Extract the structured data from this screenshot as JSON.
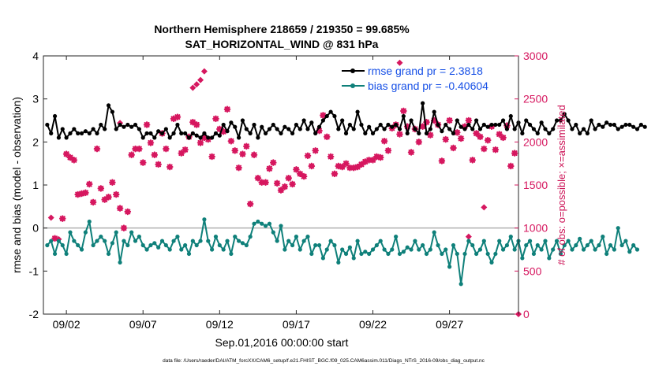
{
  "chart_data": {
    "type": "line",
    "title_line1": "Northern Hemisphere 218659 / 219350 = 99.685%",
    "title_line2": "SAT_HORIZONTAL_WIND @ 831 hPa",
    "xlabel": "Sep.01,2016 00:00:00 start",
    "ylabel": "rmse and bias (model - observation)",
    "y2label": "# of obs: o=possible; ×=assimilated",
    "footer": "data file: /Users/raeder/DAI/ATM_forcXX/CAM6_setup/f.e21.FHIST_BGC.f09_025.CAM6assim.011/Diags_NTrS_2016-09/obs_diag_output.nc",
    "xlim": [
      0.5,
      31.5
    ],
    "ylim": [
      -2,
      4
    ],
    "y2lim": [
      0,
      3000
    ],
    "xticks": [
      2,
      7,
      12,
      17,
      22,
      27
    ],
    "xticklabels": [
      "09/02",
      "09/07",
      "09/12",
      "09/17",
      "09/22",
      "09/27"
    ],
    "yticks": [
      -2,
      -1,
      0,
      1,
      2,
      3,
      4
    ],
    "yticklabels": [
      "-2",
      "-1",
      "0",
      "1",
      "2",
      "3",
      "4"
    ],
    "y2ticks": [
      0,
      500,
      1000,
      1500,
      2000,
      2500,
      3000
    ],
    "y2ticklabels": [
      "0",
      "500",
      "1000",
      "1500",
      "2000",
      "2500",
      "3000"
    ],
    "colors": {
      "rmse": "#000000",
      "bias": "#0f807a",
      "obs": "#d6175f",
      "zero_line": "#b0b0b0",
      "legend_text": "#1750e6"
    },
    "legend": {
      "position": "top-right",
      "entries": [
        "rmse grand pr = 2.3818",
        "bias grand pr = -0.40604"
      ]
    },
    "x_step": 0.25,
    "x_start": 0.75,
    "series": [
      {
        "name": "rmse grand pr = 2.3818",
        "marker": "circle",
        "values": [
          2.4,
          2.2,
          2.6,
          2.1,
          2.3,
          2.1,
          2.2,
          2.3,
          2.2,
          2.2,
          2.25,
          2.2,
          2.3,
          2.2,
          2.4,
          2.3,
          2.85,
          2.7,
          2.3,
          2.4,
          2.35,
          2.4,
          2.35,
          2.4,
          2.3,
          2.1,
          2.2,
          2.2,
          2.1,
          2.25,
          2.2,
          2.3,
          2.1,
          2.2,
          2.4,
          2.2,
          2.2,
          2.1,
          2.2,
          2.15,
          2.1,
          2.2,
          2.1,
          2.1,
          2.2,
          2.15,
          2.4,
          2.25,
          2.45,
          2.35,
          2.1,
          2.5,
          2.3,
          2.2,
          2.4,
          2.1,
          2.35,
          2.2,
          2.3,
          2.4,
          2.3,
          2.2,
          2.35,
          2.3,
          2.2,
          2.4,
          2.3,
          2.5,
          2.3,
          2.45,
          2.2,
          2.35,
          2.5,
          2.6,
          2.7,
          2.6,
          2.3,
          2.5,
          2.2,
          2.4,
          2.3,
          2.7,
          2.4,
          2.2,
          2.35,
          2.2,
          2.3,
          2.4,
          2.3,
          2.4,
          2.35,
          2.4,
          2.3,
          2.6,
          2.2,
          2.5,
          2.3,
          2.2,
          2.9,
          2.2,
          2.3,
          2.7,
          2.4,
          2.25,
          2.4,
          2.3,
          2.2,
          2.5,
          2.35,
          2.3,
          2.4,
          2.3,
          2.5,
          2.3,
          2.4,
          2.35,
          2.4,
          2.4,
          2.4,
          2.5,
          2.3,
          2.6,
          2.3,
          2.45,
          2.2,
          2.5,
          2.4,
          2.3,
          2.2,
          2.45,
          2.3,
          2.2,
          2.3,
          2.5,
          2.5,
          2.65,
          2.5,
          2.3,
          2.4,
          2.2,
          2.3,
          2.2,
          2.5,
          2.3,
          2.4,
          2.35,
          2.45,
          2.4,
          2.4,
          2.3,
          2.35,
          2.4,
          2.4,
          2.35,
          2.3,
          2.4,
          2.35
        ]
      },
      {
        "name": "bias grand pr = -0.40604",
        "marker": "circle",
        "values": [
          -0.4,
          -0.3,
          -0.6,
          -0.3,
          -0.4,
          -0.6,
          -0.1,
          -0.3,
          -0.4,
          -0.5,
          -0.1,
          0.15,
          -0.4,
          -0.3,
          -0.2,
          -0.3,
          -0.6,
          -0.35,
          -0.1,
          -0.8,
          -0.3,
          -0.4,
          -0.1,
          -0.3,
          -0.2,
          -0.4,
          -0.5,
          -0.4,
          -0.35,
          -0.45,
          -0.3,
          -0.4,
          -0.5,
          -0.3,
          -0.2,
          -0.5,
          -0.4,
          -0.6,
          -0.3,
          -0.4,
          -0.3,
          0.2,
          -0.3,
          -0.5,
          -0.2,
          -0.4,
          -0.5,
          -0.3,
          -0.6,
          -0.2,
          -0.3,
          -0.35,
          -0.4,
          -0.2,
          0.1,
          0.15,
          0.1,
          0.05,
          0.1,
          -0.1,
          -0.3,
          0.05,
          -0.5,
          -0.3,
          -0.4,
          -0.2,
          -0.5,
          -0.3,
          -0.2,
          -0.6,
          -0.4,
          -0.4,
          -0.7,
          -0.5,
          -0.3,
          -0.4,
          -0.8,
          -0.5,
          -0.6,
          -0.45,
          -0.7,
          -0.3,
          -0.6,
          -0.55,
          -0.6,
          -0.5,
          -0.4,
          -0.3,
          -0.5,
          -0.6,
          -0.5,
          -0.2,
          -0.6,
          -0.55,
          -0.45,
          -0.5,
          -0.3,
          -0.5,
          -0.4,
          -0.6,
          -0.5,
          -0.1,
          -0.4,
          -0.6,
          -0.5,
          -0.9,
          -0.4,
          -0.6,
          -1.3,
          -0.6,
          -0.3,
          -0.4,
          -0.6,
          -0.5,
          -0.3,
          -0.6,
          -0.8,
          -0.6,
          -0.3,
          -0.5,
          -0.4,
          -0.2,
          -0.5,
          -0.3,
          -0.7,
          -0.4,
          -0.3,
          -0.6,
          -0.4,
          -0.5,
          -0.3,
          -0.7,
          -0.5,
          -0.3,
          -0.6,
          -0.4,
          -0.3,
          -0.5,
          -0.4,
          -0.25,
          -0.5,
          -0.4,
          -0.3,
          -0.5,
          -0.4,
          -0.2,
          -0.6,
          -0.4,
          -0.5,
          0.0,
          -0.4,
          -0.3,
          -0.55,
          -0.4,
          -0.5
        ]
      }
    ],
    "obs_assimilated": [
      [
        1.25,
        880
      ],
      [
        1.75,
        1110
      ],
      [
        2.0,
        1860
      ],
      [
        2.25,
        1820
      ],
      [
        2.5,
        1790
      ],
      [
        2.75,
        1390
      ],
      [
        3.0,
        1400
      ],
      [
        3.25,
        1410
      ],
      [
        3.5,
        1510
      ],
      [
        3.75,
        1300
      ],
      [
        4.0,
        1920
      ],
      [
        4.25,
        1460
      ],
      [
        4.5,
        1330
      ],
      [
        4.75,
        1360
      ],
      [
        5.0,
        1530
      ],
      [
        5.25,
        1390
      ],
      [
        5.5,
        1230
      ],
      [
        5.75,
        1000
      ],
      [
        6.0,
        1190
      ],
      [
        6.25,
        1850
      ],
      [
        6.5,
        1920
      ],
      [
        6.75,
        1920
      ],
      [
        7.0,
        1760
      ],
      [
        7.25,
        2200
      ],
      [
        7.5,
        1990
      ],
      [
        7.75,
        1850
      ],
      [
        8.0,
        1740
      ],
      [
        8.25,
        2100
      ],
      [
        8.5,
        1920
      ],
      [
        8.75,
        1710
      ],
      [
        9.0,
        2270
      ],
      [
        9.25,
        2290
      ],
      [
        9.5,
        1870
      ],
      [
        9.75,
        1910
      ],
      [
        10.0,
        2060
      ],
      [
        10.25,
        2230
      ],
      [
        10.5,
        2200
      ],
      [
        10.75,
        1990
      ],
      [
        11.0,
        2050
      ],
      [
        11.25,
        2030
      ],
      [
        11.5,
        1830
      ],
      [
        11.75,
        2270
      ],
      [
        12.0,
        2150
      ],
      [
        12.25,
        2120
      ],
      [
        12.5,
        2380
      ],
      [
        12.75,
        2010
      ],
      [
        13.0,
        1900
      ],
      [
        13.25,
        1700
      ],
      [
        13.5,
        1860
      ],
      [
        13.75,
        1950
      ],
      [
        14.0,
        1280
      ],
      [
        14.25,
        1850
      ],
      [
        14.5,
        1580
      ],
      [
        14.75,
        1530
      ],
      [
        15.0,
        1530
      ],
      [
        15.25,
        1690
      ],
      [
        15.5,
        1760
      ],
      [
        15.75,
        1520
      ],
      [
        16.0,
        1440
      ],
      [
        16.25,
        1480
      ],
      [
        16.5,
        1580
      ],
      [
        16.75,
        1510
      ],
      [
        17.0,
        1680
      ],
      [
        17.25,
        1630
      ],
      [
        17.5,
        1600
      ],
      [
        17.75,
        1840
      ],
      [
        18.0,
        1720
      ],
      [
        18.25,
        1900
      ],
      [
        18.5,
        2130
      ],
      [
        18.75,
        2310
      ],
      [
        19.0,
        2060
      ],
      [
        19.25,
        1830
      ],
      [
        19.5,
        1630
      ],
      [
        19.75,
        1720
      ],
      [
        20.0,
        1710
      ],
      [
        20.25,
        1750
      ],
      [
        20.5,
        1700
      ],
      [
        20.75,
        1700
      ],
      [
        21.0,
        1710
      ],
      [
        21.25,
        1740
      ],
      [
        21.5,
        1770
      ],
      [
        21.75,
        1790
      ],
      [
        22.0,
        1790
      ],
      [
        22.25,
        1830
      ],
      [
        22.5,
        1820
      ],
      [
        22.75,
        2010
      ],
      [
        23.0,
        1900
      ],
      [
        23.25,
        2160
      ],
      [
        23.5,
        2200
      ],
      [
        23.75,
        2090
      ],
      [
        24.0,
        2360
      ],
      [
        24.25,
        2180
      ],
      [
        24.5,
        1880
      ],
      [
        24.75,
        2150
      ],
      [
        25.0,
        2000
      ],
      [
        25.25,
        2180
      ],
      [
        25.5,
        2230
      ],
      [
        25.75,
        2080
      ],
      [
        26.0,
        2250
      ],
      [
        26.25,
        2200
      ],
      [
        26.5,
        1780
      ],
      [
        26.75,
        2030
      ],
      [
        27.0,
        2250
      ],
      [
        27.25,
        1930
      ],
      [
        27.5,
        2110
      ],
      [
        27.75,
        2040
      ],
      [
        28.0,
        2180
      ],
      [
        28.25,
        2250
      ],
      [
        28.5,
        1790
      ],
      [
        28.75,
        2100
      ],
      [
        29.0,
        2060
      ],
      [
        29.25,
        1920
      ],
      [
        29.5,
        2020
      ],
      [
        29.75,
        2180
      ],
      [
        30.0,
        1910
      ],
      [
        30.25,
        2090
      ],
      [
        30.5,
        2050
      ],
      [
        30.75,
        2190
      ],
      [
        31.0,
        1720
      ],
      [
        31.25,
        1870
      ]
    ],
    "obs_possible": [
      [
        1.0,
        1120
      ],
      [
        1.25,
        880
      ],
      [
        1.5,
        870
      ],
      [
        1.75,
        1110
      ],
      [
        2.0,
        1860
      ],
      [
        2.25,
        1820
      ],
      [
        2.75,
        1390
      ],
      [
        3.25,
        1410
      ],
      [
        3.75,
        1300
      ],
      [
        4.25,
        1460
      ],
      [
        4.75,
        1360
      ],
      [
        5.5,
        2220
      ],
      [
        5.75,
        1000
      ],
      [
        6.25,
        1850
      ],
      [
        7.0,
        1760
      ],
      [
        7.75,
        1850
      ],
      [
        8.5,
        1920
      ],
      [
        9.0,
        2270
      ],
      [
        9.5,
        1870
      ],
      [
        10.0,
        2060
      ],
      [
        10.25,
        2630
      ],
      [
        10.5,
        2670
      ],
      [
        10.75,
        2720
      ],
      [
        11.0,
        2820
      ],
      [
        11.5,
        1830
      ],
      [
        12.0,
        2150
      ],
      [
        12.5,
        2380
      ],
      [
        13.0,
        1900
      ],
      [
        13.5,
        1860
      ],
      [
        14.0,
        1280
      ],
      [
        14.5,
        1580
      ],
      [
        15.0,
        1530
      ],
      [
        15.5,
        1760
      ],
      [
        16.0,
        1440
      ],
      [
        16.5,
        1580
      ],
      [
        17.0,
        1680
      ],
      [
        17.5,
        1600
      ],
      [
        18.0,
        1720
      ],
      [
        18.5,
        2130
      ],
      [
        18.75,
        2310
      ],
      [
        19.0,
        2060
      ],
      [
        19.5,
        1630
      ],
      [
        20.0,
        1710
      ],
      [
        20.5,
        1700
      ],
      [
        21.0,
        1710
      ],
      [
        21.5,
        1770
      ],
      [
        22.0,
        1790
      ],
      [
        22.5,
        1820
      ],
      [
        23.0,
        1900
      ],
      [
        23.5,
        2200
      ],
      [
        23.75,
        2920
      ],
      [
        24.0,
        2360
      ],
      [
        24.5,
        1880
      ],
      [
        25.0,
        2000
      ],
      [
        25.5,
        2230
      ],
      [
        26.0,
        2250
      ],
      [
        26.5,
        1780
      ],
      [
        27.0,
        2250
      ],
      [
        27.5,
        2110
      ],
      [
        28.0,
        2180
      ],
      [
        28.25,
        900
      ],
      [
        28.5,
        1790
      ],
      [
        29.0,
        2060
      ],
      [
        29.25,
        1240
      ],
      [
        29.5,
        2020
      ],
      [
        30.0,
        1910
      ],
      [
        30.5,
        2050
      ],
      [
        31.0,
        1720
      ],
      [
        31.5,
        0
      ]
    ]
  }
}
